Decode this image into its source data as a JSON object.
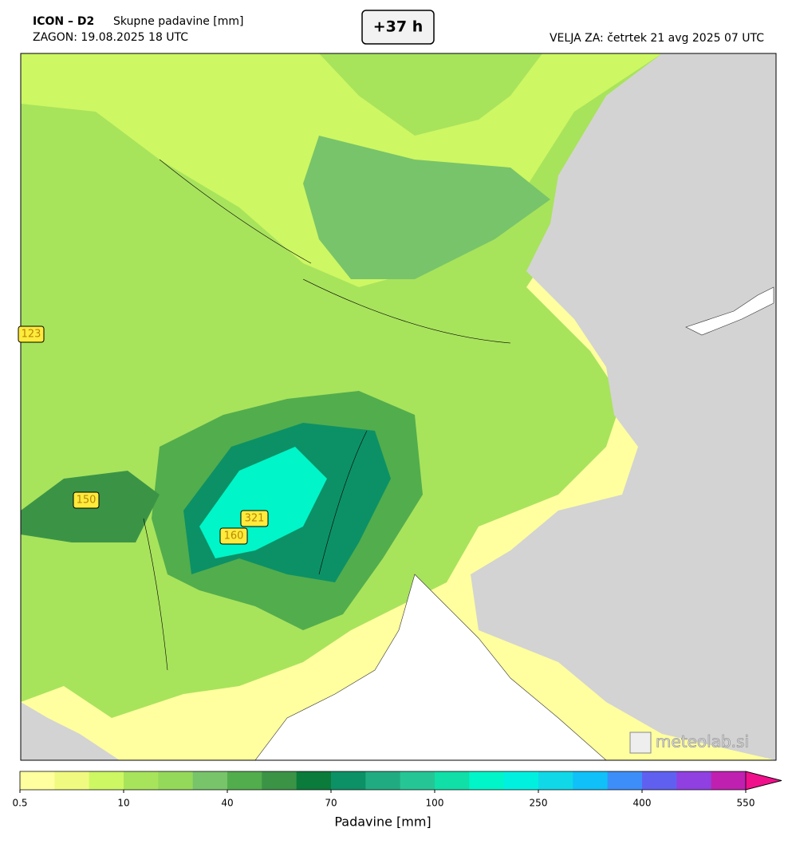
{
  "header": {
    "model": "ICON – D2",
    "product": "Skupne padavine [mm]",
    "run": "ZAGON: 19.08.2025 18 UTC",
    "lead": "+37 h",
    "valid": "VELJA ZA: četrtek 21 avg 2025 07 UTC"
  },
  "map": {
    "max_labels": [
      "123",
      "150",
      "321",
      "160"
    ],
    "watermark": "meteolab.si"
  },
  "colorbar": {
    "label": "Padavine [mm]",
    "levels": [
      0.5,
      2,
      5,
      10,
      20,
      30,
      40,
      50,
      60,
      70,
      80,
      90,
      100,
      150,
      200,
      250,
      300,
      350,
      400,
      450,
      500,
      550
    ],
    "colors": [
      "#ffff9f",
      "#f0fa80",
      "#cdf763",
      "#a8e35c",
      "#95d95a",
      "#78c46a",
      "#52ad4d",
      "#3b9446",
      "#0a7b3a",
      "#0c9166",
      "#20ab80",
      "#26c595",
      "#10dfa8",
      "#00f5c8",
      "#00f0e0",
      "#10d8e8",
      "#10c0f8",
      "#3d8ef8",
      "#6060f0",
      "#9040e0",
      "#c020b0"
    ],
    "extend_color": "#f0108c",
    "ticks": [
      0,
      3,
      6,
      9,
      12,
      15,
      18,
      21
    ]
  }
}
